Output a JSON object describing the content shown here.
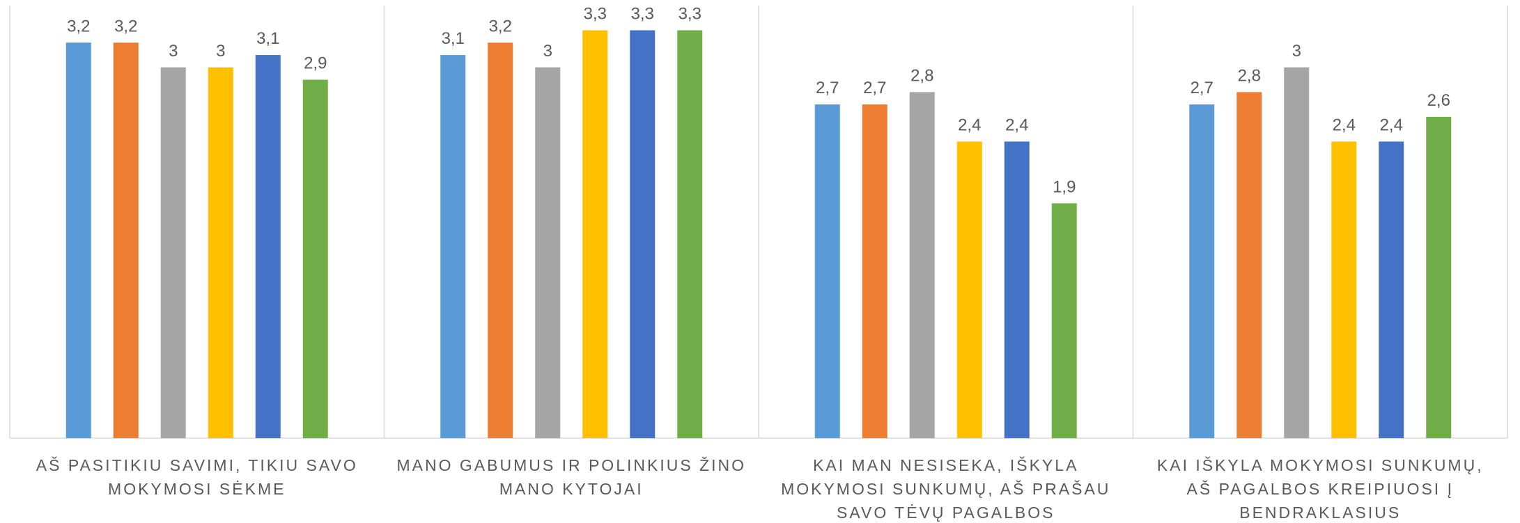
{
  "chart_data": {
    "type": "bar",
    "categories": [
      "AŠ PASITIKIU SAVIMI, TIKIU SAVO MOKYMOSI SĖKME",
      "MANO GABUMUS IR POLINKIUS ŽINO MANO KYTOJAI",
      "KAI MAN NESISEKA, IŠKYLA MOKYMOSI SUNKUMŲ, AŠ PRAŠAU SAVO TĖVŲ PAGALBOS",
      "KAI IŠKYLA MOKYMOSI SUNKUMŲ, AŠ PAGALBOS KREIPIUOSI Į BENDRAKLASIUS"
    ],
    "series": [
      {
        "color": "#5b9bd5",
        "values": [
          3.2,
          3.1,
          2.7,
          2.7
        ],
        "value_labels": [
          "3,2",
          "3,1",
          "2,7",
          "2,7"
        ]
      },
      {
        "color": "#ed7d31",
        "values": [
          3.2,
          3.2,
          2.7,
          2.8
        ],
        "value_labels": [
          "3,2",
          "3,2",
          "2,7",
          "2,8"
        ]
      },
      {
        "color": "#a5a5a5",
        "values": [
          3,
          3,
          2.8,
          3
        ],
        "value_labels": [
          "3",
          "3",
          "2,8",
          "3"
        ]
      },
      {
        "color": "#ffc000",
        "values": [
          3,
          3.3,
          2.4,
          2.4
        ],
        "value_labels": [
          "3",
          "3,3",
          "2,4",
          "2,4"
        ]
      },
      {
        "color": "#4472c4",
        "values": [
          3.1,
          3.3,
          2.4,
          2.4
        ],
        "value_labels": [
          "3,1",
          "3,3",
          "2,4",
          "2,4"
        ]
      },
      {
        "color": "#70ad47",
        "values": [
          2.9,
          3.3,
          1.9,
          2.6
        ],
        "value_labels": [
          "2,9",
          "3,3",
          "1,9",
          "2,6"
        ]
      }
    ],
    "ylim": [
      0,
      3.5
    ]
  }
}
